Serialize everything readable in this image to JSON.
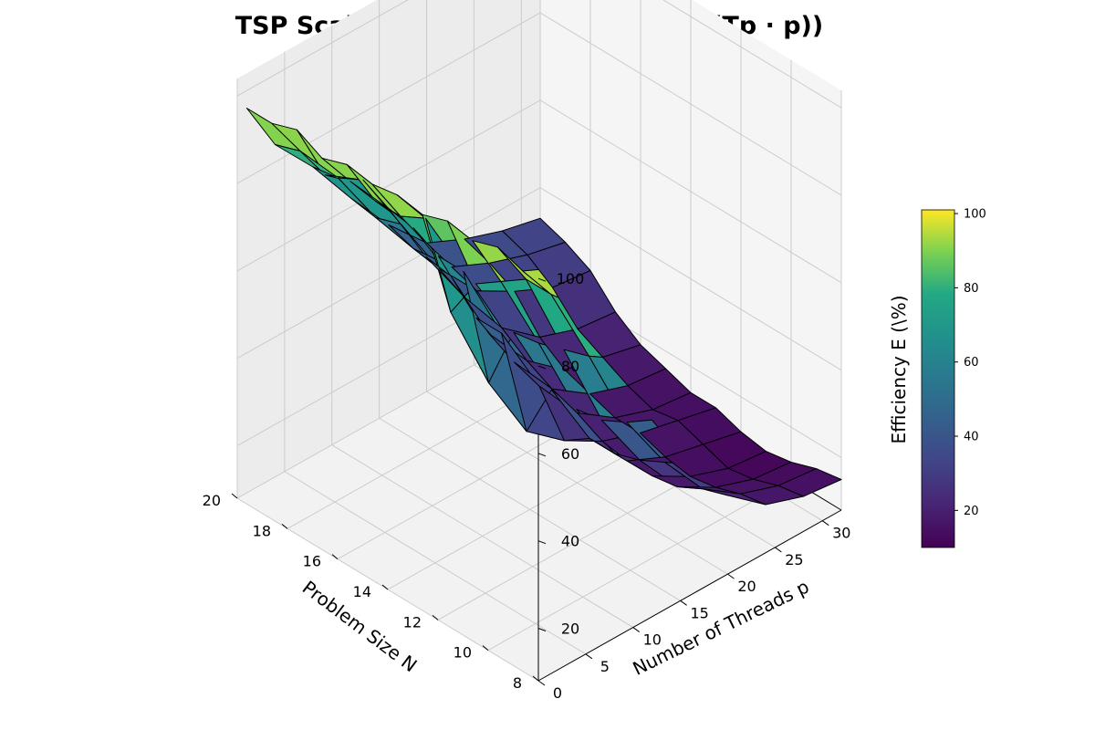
{
  "chart_data": {
    "type": "surface",
    "title": "TSP Scalability Efficiency (E = Ts / (Tp · p))",
    "xlabel": "Problem Size N",
    "ylabel": "Number of Threads p",
    "zlabel": "Efficiency E (\\%)",
    "colormap": "viridis",
    "x_ticks": [
      "8",
      "10",
      "12",
      "14",
      "16",
      "18",
      "20"
    ],
    "y_ticks": [
      "0",
      "5",
      "10",
      "15",
      "20",
      "25",
      "30"
    ],
    "z_ticks": [
      "20",
      "40",
      "60",
      "80",
      "100"
    ],
    "colorbar_ticks": [
      "20",
      "40",
      "60",
      "80",
      "100"
    ],
    "xlim": [
      8,
      20
    ],
    "ylim": [
      0,
      32
    ],
    "zlim": [
      8,
      104
    ],
    "N": [
      8,
      9,
      10,
      11,
      12,
      13,
      14,
      15,
      16,
      17,
      18,
      19,
      20
    ],
    "threads": [
      1,
      4,
      8,
      12,
      16,
      20,
      24,
      28,
      32
    ],
    "efficiency": [
      [
        101,
        89,
        72,
        53,
        38,
        26,
        19,
        16,
        15
      ],
      [
        97,
        88,
        69,
        49,
        35,
        24,
        18,
        15,
        14
      ],
      [
        99,
        88,
        67,
        46,
        32,
        21,
        16,
        13,
        12
      ],
      [
        97,
        84,
        65,
        45,
        30,
        20,
        15,
        12,
        11
      ],
      [
        98,
        80,
        64,
        46,
        30,
        20,
        16,
        14,
        12
      ],
      [
        96,
        70,
        49,
        33,
        26,
        21,
        18,
        16,
        14
      ],
      [
        97,
        88,
        71,
        52,
        35,
        24,
        18,
        15,
        14
      ],
      [
        96,
        85,
        71,
        52,
        37,
        26,
        20,
        17,
        16
      ],
      [
        97,
        85,
        74,
        58,
        40,
        29,
        22,
        20,
        18
      ],
      [
        95,
        86,
        75,
        59,
        45,
        33,
        26,
        23,
        22
      ],
      [
        98,
        84,
        78,
        63,
        48,
        38,
        33,
        29,
        28
      ],
      [
        96,
        86,
        75,
        61,
        49,
        40,
        36,
        33,
        31
      ],
      [
        96,
        84,
        74,
        62,
        51,
        42,
        38,
        35,
        33
      ]
    ]
  }
}
